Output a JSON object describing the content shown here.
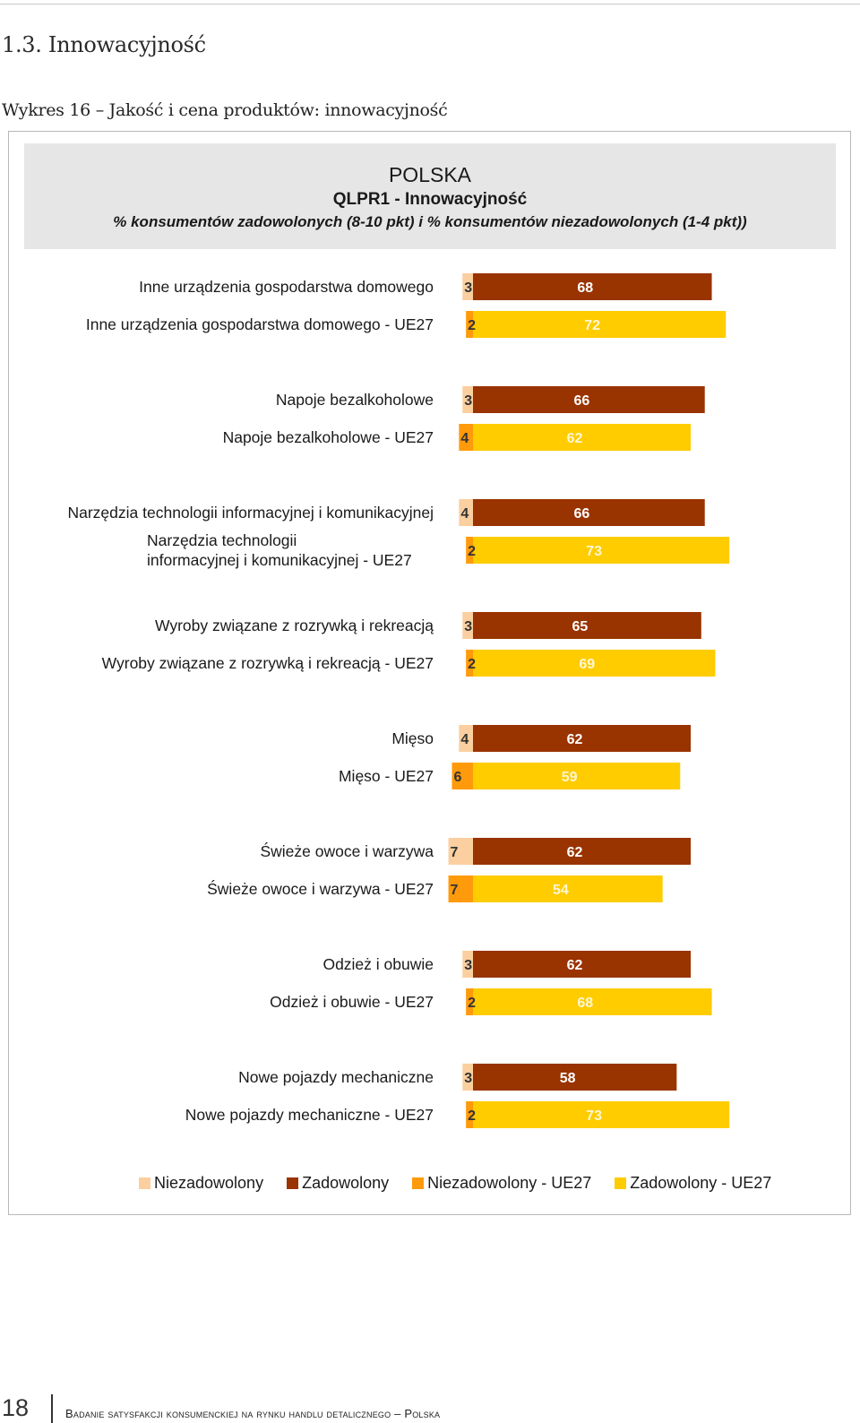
{
  "section_heading": "1.3. Innowacyjność",
  "figure_caption": "Wykres 16 – Jakość i cena produktów: innowacyjność",
  "footer": {
    "page_number": "18",
    "running_title": "Badanie satysfakcji konsumenckiej na rynku handlu detalicznego – Polska"
  },
  "chart_data": {
    "type": "bar",
    "orientation": "horizontal",
    "stacked": true,
    "title": "POLSKA",
    "subtitle": "QLPR1 - Innowacyjność",
    "note": "% konsumentów zadowolonych (8-10 pkt) i % konsumentów niezadowolonych (1-4 pkt))",
    "xlabel": "",
    "ylabel": "",
    "grid": false,
    "legend_position": "bottom",
    "colors": {
      "dissatisfied": "#fbcf9f",
      "satisfied": "#993300",
      "dissatisfied_ue27": "#ff9a0a",
      "satisfied_ue27": "#ffcc00"
    },
    "legend": [
      {
        "label": "Niezadowolony",
        "color": "#fbcf9f"
      },
      {
        "label": "Zadowolony",
        "color": "#993300"
      },
      {
        "label": "Niezadowolony - UE27",
        "color": "#ff9a0a"
      },
      {
        "label": "Zadowolony - UE27",
        "color": "#ffcc00"
      }
    ],
    "groups": [
      {
        "pl": {
          "label": [
            "Inne urządzenia gospodarstwa domowego"
          ],
          "dissatisfied": 3,
          "satisfied": 68
        },
        "ue": {
          "label": [
            "Inne urządzenia gospodarstwa domowego - UE27"
          ],
          "dissatisfied": 2,
          "satisfied": 72
        }
      },
      {
        "pl": {
          "label": [
            "Napoje bezalkoholowe"
          ],
          "dissatisfied": 3,
          "satisfied": 66
        },
        "ue": {
          "label": [
            "Napoje bezalkoholowe - UE27"
          ],
          "dissatisfied": 4,
          "satisfied": 62
        }
      },
      {
        "pl": {
          "label": [
            "Narzędzia technologii informacyjnej i komunikacyjnej"
          ],
          "dissatisfied": 4,
          "satisfied": 66
        },
        "ue": {
          "label": [
            "Narzędzia technologii",
            "informacyjnej i komunikacyjnej - UE27"
          ],
          "dissatisfied": 2,
          "satisfied": 73
        }
      },
      {
        "pl": {
          "label": [
            "Wyroby związane z rozrywką i rekreacją"
          ],
          "dissatisfied": 3,
          "satisfied": 65
        },
        "ue": {
          "label": [
            "Wyroby związane z rozrywką i rekreacją - UE27"
          ],
          "dissatisfied": 2,
          "satisfied": 69
        }
      },
      {
        "pl": {
          "label": [
            "Mięso"
          ],
          "dissatisfied": 4,
          "satisfied": 62
        },
        "ue": {
          "label": [
            "Mięso - UE27"
          ],
          "dissatisfied": 6,
          "satisfied": 59
        }
      },
      {
        "pl": {
          "label": [
            "Świeże owoce i warzywa"
          ],
          "dissatisfied": 7,
          "satisfied": 62
        },
        "ue": {
          "label": [
            "Świeże owoce i warzywa - UE27"
          ],
          "dissatisfied": 7,
          "satisfied": 54
        }
      },
      {
        "pl": {
          "label": [
            "Odzież i obuwie"
          ],
          "dissatisfied": 3,
          "satisfied": 62
        },
        "ue": {
          "label": [
            "Odzież i obuwie - UE27"
          ],
          "dissatisfied": 2,
          "satisfied": 68
        }
      },
      {
        "pl": {
          "label": [
            "Nowe pojazdy mechaniczne"
          ],
          "dissatisfied": 3,
          "satisfied": 58
        },
        "ue": {
          "label": [
            "Nowe pojazdy mechaniczne - UE27"
          ],
          "dissatisfied": 2,
          "satisfied": 73
        }
      }
    ]
  }
}
